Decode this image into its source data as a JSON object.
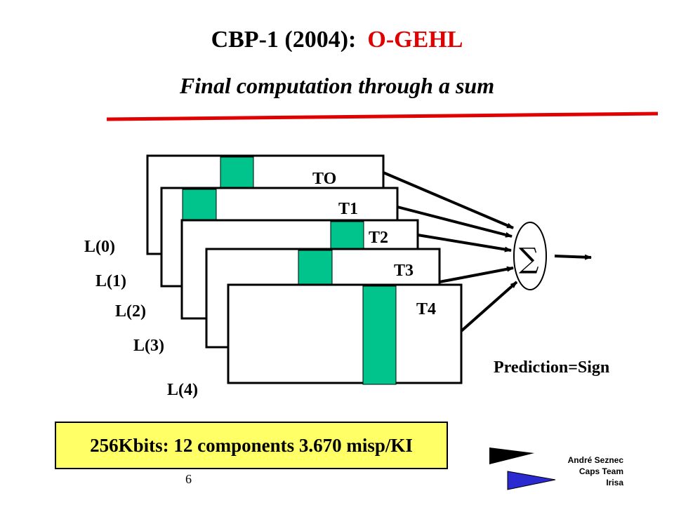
{
  "slide": {
    "title_prefix": "CBP-1 (2004):",
    "title_accent": "O-GEHL",
    "subtitle": "Final computation through a sum",
    "page_number": "6"
  },
  "colors": {
    "accent_red": "#e00000",
    "table_column_green": "#00c48c",
    "summary_box_yellow": "#ffff66",
    "logo_blue": "#2a2ad0"
  },
  "diagram": {
    "tables": [
      {
        "name": "TO"
      },
      {
        "name": "T1"
      },
      {
        "name": "T2"
      },
      {
        "name": "T3"
      },
      {
        "name": "T4"
      }
    ],
    "history_lengths": [
      "L(0)",
      "L(1)",
      "L(2)",
      "L(3)",
      "L(4)"
    ],
    "adder_symbol": "∑",
    "output_label": "Prediction=Sign"
  },
  "summary": {
    "text": "256Kbits: 12 components 3.670 misp/KI"
  },
  "author_block": {
    "name": "André Seznec",
    "team": "Caps Team",
    "institution": "Irisa",
    "logo_icon": "irisa-pennant-logo-icon"
  }
}
